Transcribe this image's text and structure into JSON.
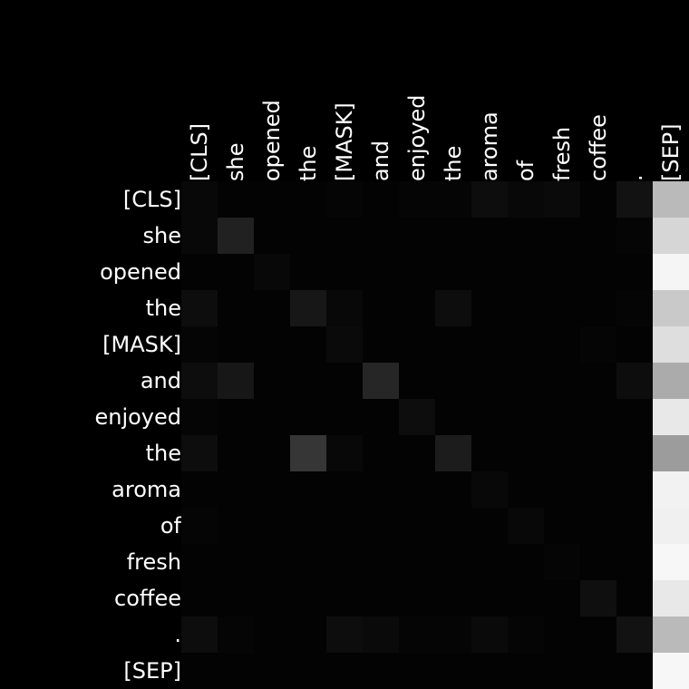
{
  "chart_data": {
    "type": "heatmap",
    "title": "",
    "xlabel": "",
    "ylabel": "",
    "colormap": "grayscale",
    "value_range": [
      0,
      1
    ],
    "x_tokens": [
      "[CLS]",
      "she",
      "opened",
      "the",
      "[MASK]",
      "and",
      "enjoyed",
      "the",
      "aroma",
      "of",
      "fresh",
      "coffee",
      ".",
      "[SEP]"
    ],
    "y_tokens": [
      "[CLS]",
      "she",
      "opened",
      "the",
      "[MASK]",
      "and",
      "enjoyed",
      "the",
      "aroma",
      "of",
      "fresh",
      "coffee",
      ".",
      "[SEP]"
    ],
    "values": [
      [
        0.03,
        0.01,
        0.01,
        0.01,
        0.02,
        0.01,
        0.02,
        0.02,
        0.05,
        0.03,
        0.04,
        0.01,
        0.07,
        0.73
      ],
      [
        0.03,
        0.13,
        0.01,
        0.01,
        0.01,
        0.01,
        0.01,
        0.01,
        0.01,
        0.01,
        0.01,
        0.01,
        0.02,
        0.84
      ],
      [
        0.01,
        0.01,
        0.03,
        0.01,
        0.01,
        0.01,
        0.01,
        0.01,
        0.01,
        0.01,
        0.01,
        0.01,
        0.01,
        0.96
      ],
      [
        0.05,
        0.01,
        0.01,
        0.09,
        0.03,
        0.01,
        0.01,
        0.05,
        0.01,
        0.01,
        0.01,
        0.01,
        0.02,
        0.79
      ],
      [
        0.02,
        0.01,
        0.01,
        0.01,
        0.04,
        0.01,
        0.01,
        0.01,
        0.01,
        0.01,
        0.01,
        0.02,
        0.01,
        0.87
      ],
      [
        0.05,
        0.09,
        0.01,
        0.01,
        0.01,
        0.15,
        0.01,
        0.01,
        0.01,
        0.01,
        0.01,
        0.01,
        0.05,
        0.67
      ],
      [
        0.02,
        0.01,
        0.01,
        0.01,
        0.01,
        0.01,
        0.05,
        0.01,
        0.01,
        0.01,
        0.01,
        0.01,
        0.01,
        0.91
      ],
      [
        0.05,
        0.01,
        0.01,
        0.21,
        0.03,
        0.01,
        0.01,
        0.11,
        0.01,
        0.01,
        0.01,
        0.01,
        0.01,
        0.61
      ],
      [
        0.01,
        0.01,
        0.01,
        0.01,
        0.01,
        0.01,
        0.01,
        0.01,
        0.03,
        0.01,
        0.01,
        0.01,
        0.01,
        0.95
      ],
      [
        0.02,
        0.01,
        0.01,
        0.01,
        0.01,
        0.01,
        0.01,
        0.01,
        0.01,
        0.03,
        0.01,
        0.01,
        0.01,
        0.94
      ],
      [
        0.01,
        0.01,
        0.01,
        0.01,
        0.01,
        0.01,
        0.01,
        0.01,
        0.01,
        0.01,
        0.02,
        0.01,
        0.01,
        0.97
      ],
      [
        0.01,
        0.01,
        0.01,
        0.01,
        0.01,
        0.01,
        0.01,
        0.01,
        0.01,
        0.01,
        0.01,
        0.06,
        0.01,
        0.91
      ],
      [
        0.05,
        0.02,
        0.01,
        0.01,
        0.05,
        0.04,
        0.02,
        0.02,
        0.04,
        0.02,
        0.01,
        0.01,
        0.07,
        0.73
      ],
      [
        0.01,
        0.01,
        0.01,
        0.01,
        0.01,
        0.01,
        0.01,
        0.01,
        0.01,
        0.01,
        0.01,
        0.01,
        0.01,
        0.97
      ]
    ]
  }
}
